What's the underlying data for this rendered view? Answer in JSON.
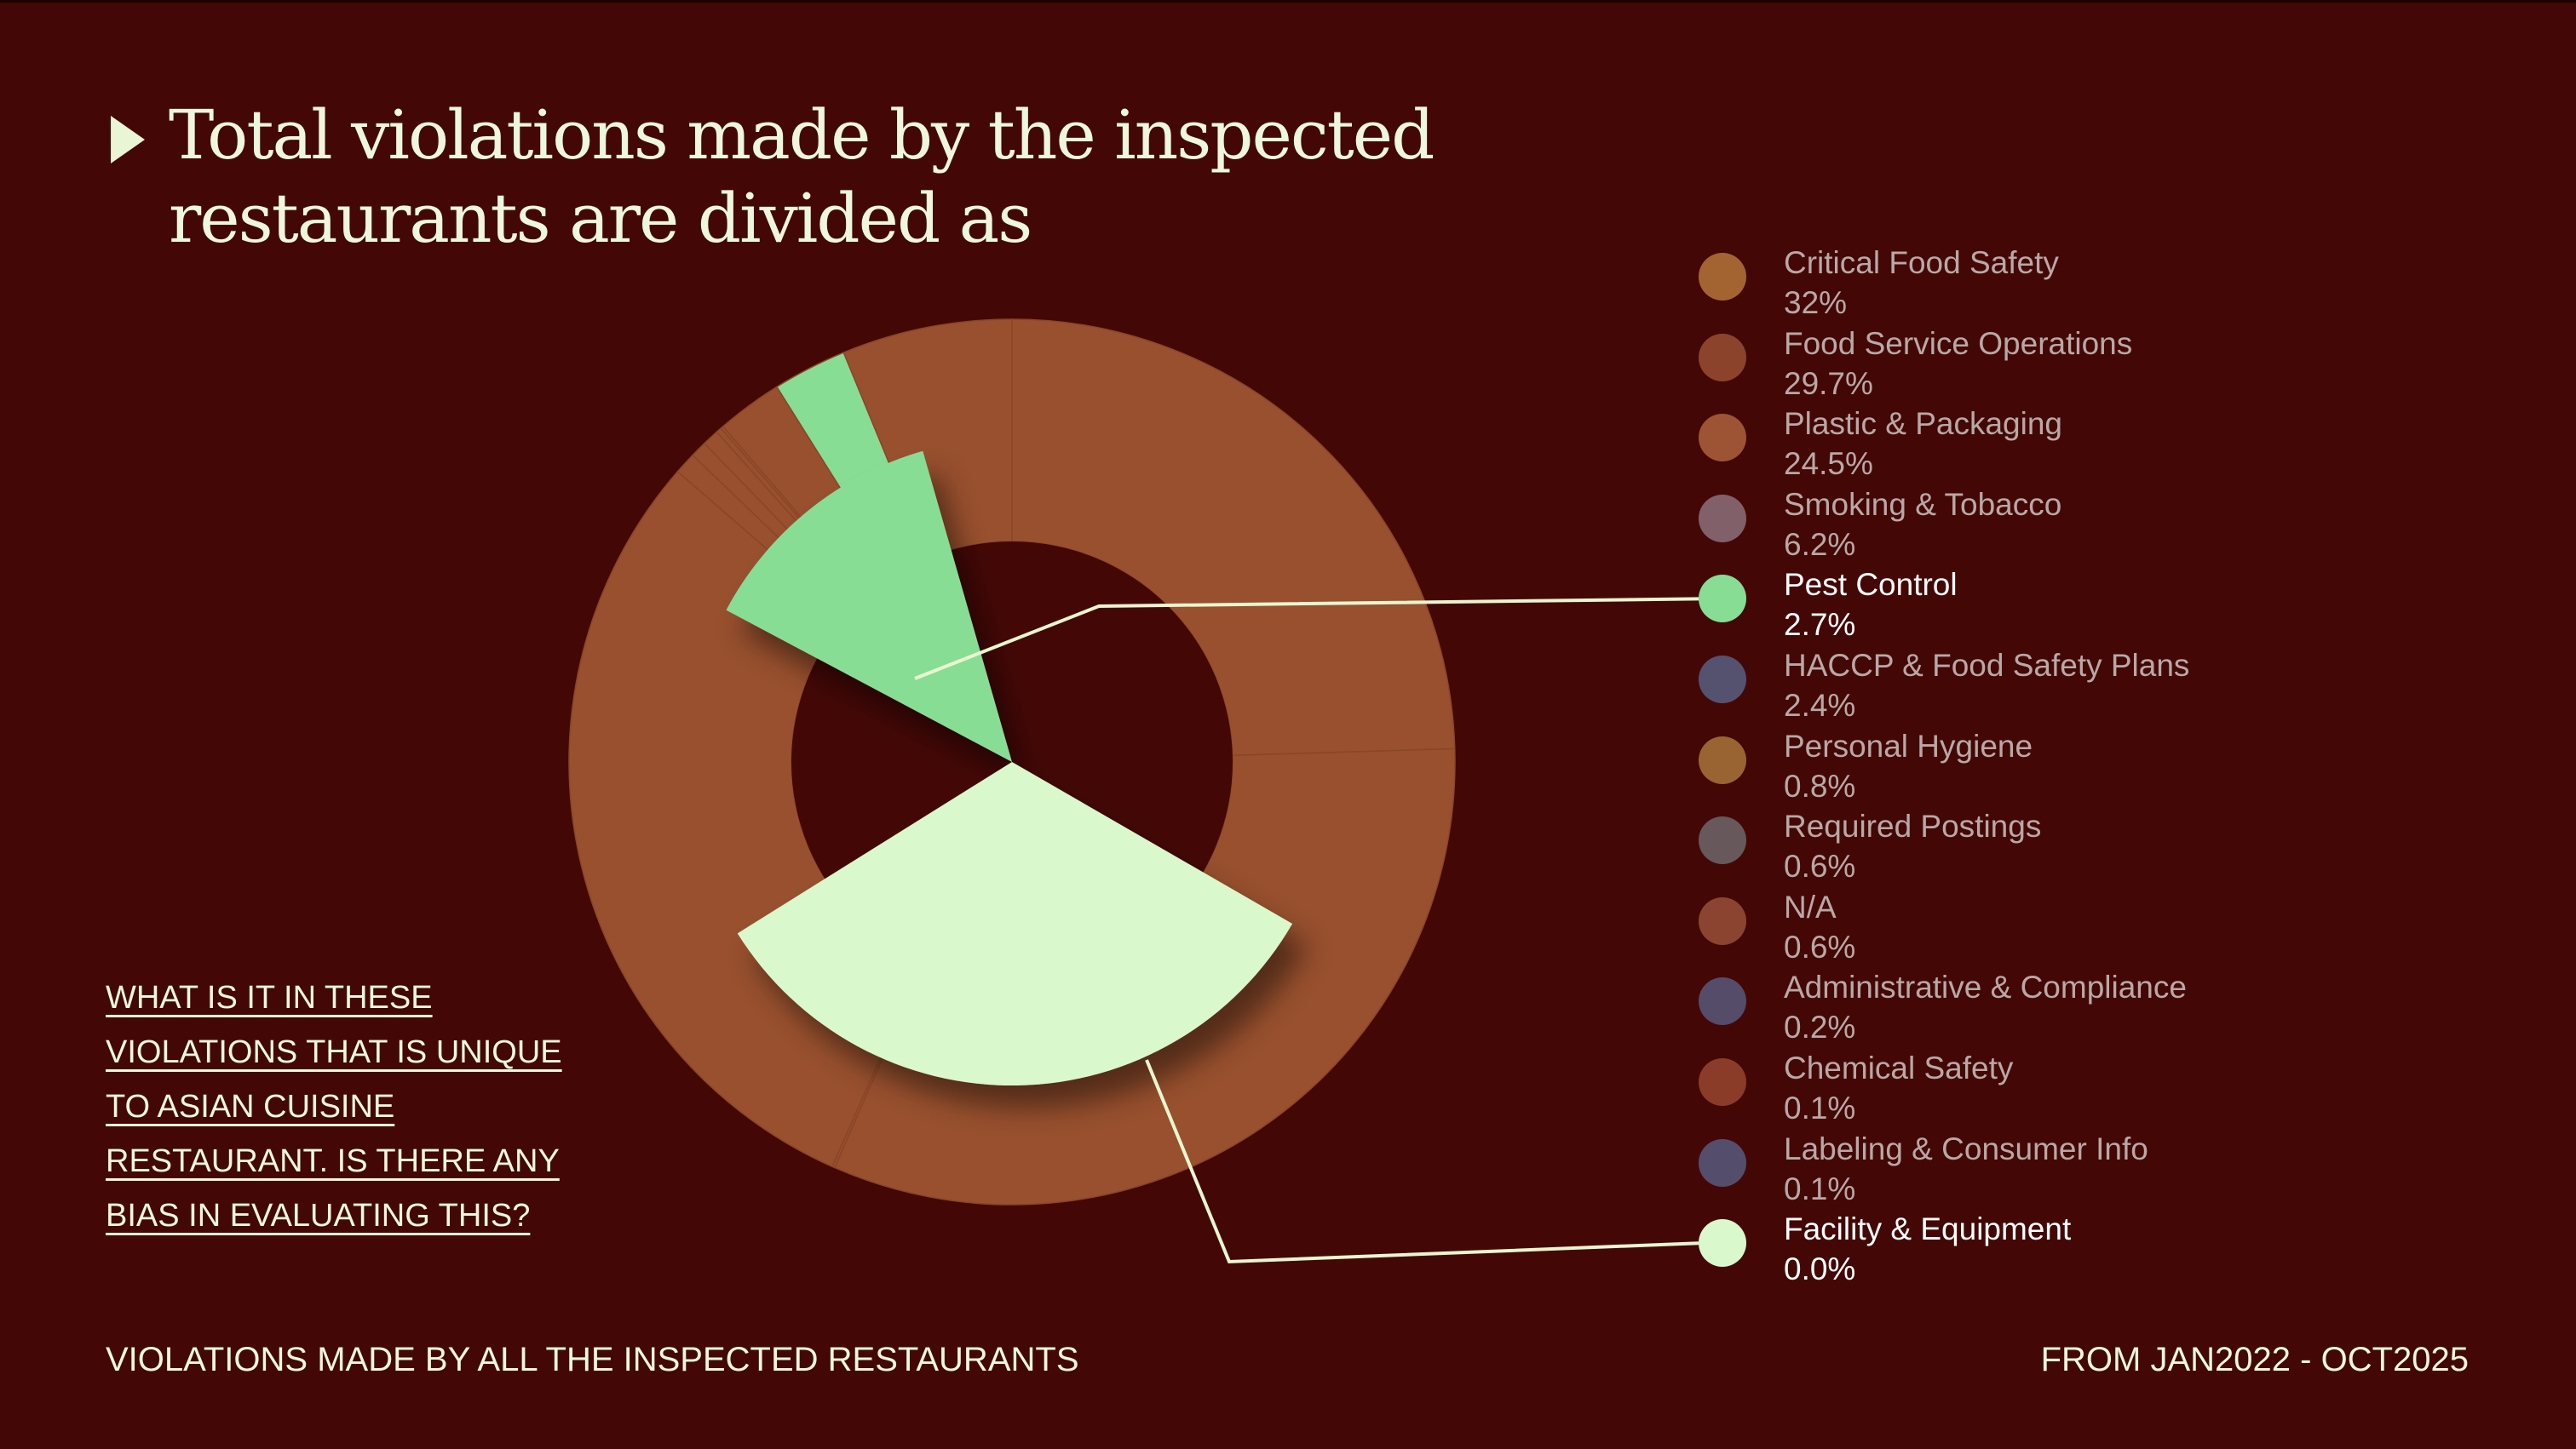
{
  "title": "Total violations made by the inspected restaurants are divided as",
  "question": "WHAT IS IT IN THESE VIOLATIONS THAT IS UNIQUE TO ASIAN CUISINE RESTAURANT. IS THERE ANY BIAS IN EVALUATING THIS?",
  "footer_left": "VIOLATIONS MADE BY ALL THE INSPECTED RESTAURANTS",
  "footer_right": "FROM JAN2022 - OCT2025",
  "colors": {
    "background": "#430806",
    "text": "#eef7dc",
    "ring": "#98502e",
    "pest": "#88dd94",
    "facility": "#d9f9cc",
    "line": "#e8f6d0"
  },
  "chart_data": {
    "type": "pie",
    "legend_position": "right",
    "highlighted": [
      "Pest Control",
      "Facility & Equipment"
    ],
    "slices": [
      {
        "label": "Critical Food Safety",
        "value_label": "32%",
        "value": 32,
        "color": "#a46432"
      },
      {
        "label": "Food Service Operations",
        "value_label": "29.7%",
        "value": 29.7,
        "color": "#8c432b"
      },
      {
        "label": "Plastic & Packaging",
        "value_label": "24.5%",
        "value": 24.5,
        "color": "#9c5434"
      },
      {
        "label": "Smoking & Tobacco",
        "value_label": "6.2%",
        "value": 6.2,
        "color": "#82606a"
      },
      {
        "label": "Pest Control",
        "value_label": "2.7%",
        "value": 2.7,
        "color": "#88dd94"
      },
      {
        "label": "HACCP & Food Safety Plans",
        "value_label": "2.4%",
        "value": 2.4,
        "color": "#555270"
      },
      {
        "label": "Personal Hygiene",
        "value_label": "0.8%",
        "value": 0.8,
        "color": "#9a6432"
      },
      {
        "label": "Required Postings",
        "value_label": "0.6%",
        "value": 0.6,
        "color": "#67585c"
      },
      {
        "label": "N/A",
        "value_label": "0.6%",
        "value": 0.6,
        "color": "#8a4430"
      },
      {
        "label": "Administrative & Compliance",
        "value_label": "0.2%",
        "value": 0.2,
        "color": "#544c68"
      },
      {
        "label": "Chemical Safety",
        "value_label": "0.1%",
        "value": 0.1,
        "color": "#8a3c28"
      },
      {
        "label": "Labeling & Consumer Info",
        "value_label": "0.1%",
        "value": 0.1,
        "color": "#544e6c"
      },
      {
        "label": "Facility & Equipment",
        "value_label": "0.0%",
        "value": 0.0,
        "color": "#d9f9cc"
      }
    ]
  }
}
